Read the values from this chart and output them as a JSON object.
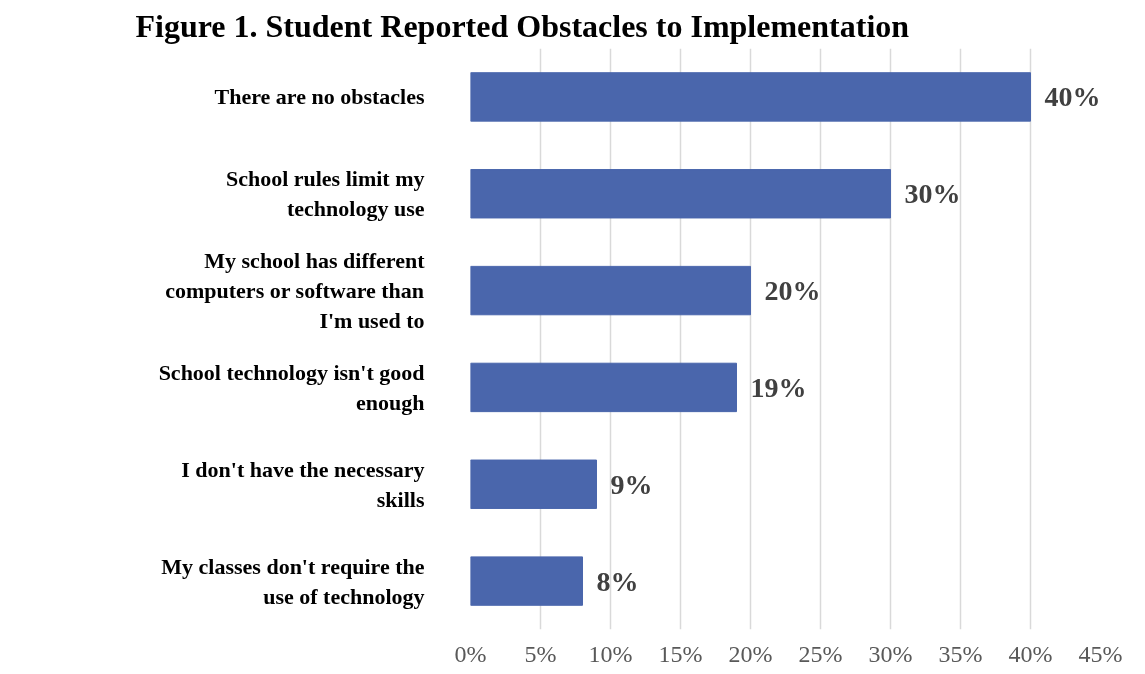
{
  "chart_data": {
    "type": "bar",
    "orientation": "horizontal",
    "title": "Figure 1. Student Reported Obstacles to Implementation",
    "categories": [
      "There are no obstacles",
      "School rules limit my technology use",
      "My school has different computers or software than I'm used to",
      "School technology isn't good enough",
      "I don't have the necessary skills",
      "My classes don't require the use of technology"
    ],
    "values": [
      40,
      30,
      20,
      19,
      9,
      8
    ],
    "value_labels": [
      "40%",
      "30%",
      "20%",
      "19%",
      "9%",
      "8%"
    ],
    "color": "#4a66ac",
    "xlim": [
      0,
      45
    ],
    "xticks": [
      {
        "value": 0,
        "label": "0%"
      },
      {
        "value": 5,
        "label": "5%"
      },
      {
        "value": 10,
        "label": "10%"
      },
      {
        "value": 15,
        "label": "15%"
      },
      {
        "value": 20,
        "label": "20%"
      },
      {
        "value": 25,
        "label": "25%"
      },
      {
        "value": 30,
        "label": "30%"
      },
      {
        "value": 35,
        "label": "35%"
      },
      {
        "value": 40,
        "label": "40%"
      },
      {
        "value": 45,
        "label": "45%"
      }
    ],
    "grid": "x"
  }
}
